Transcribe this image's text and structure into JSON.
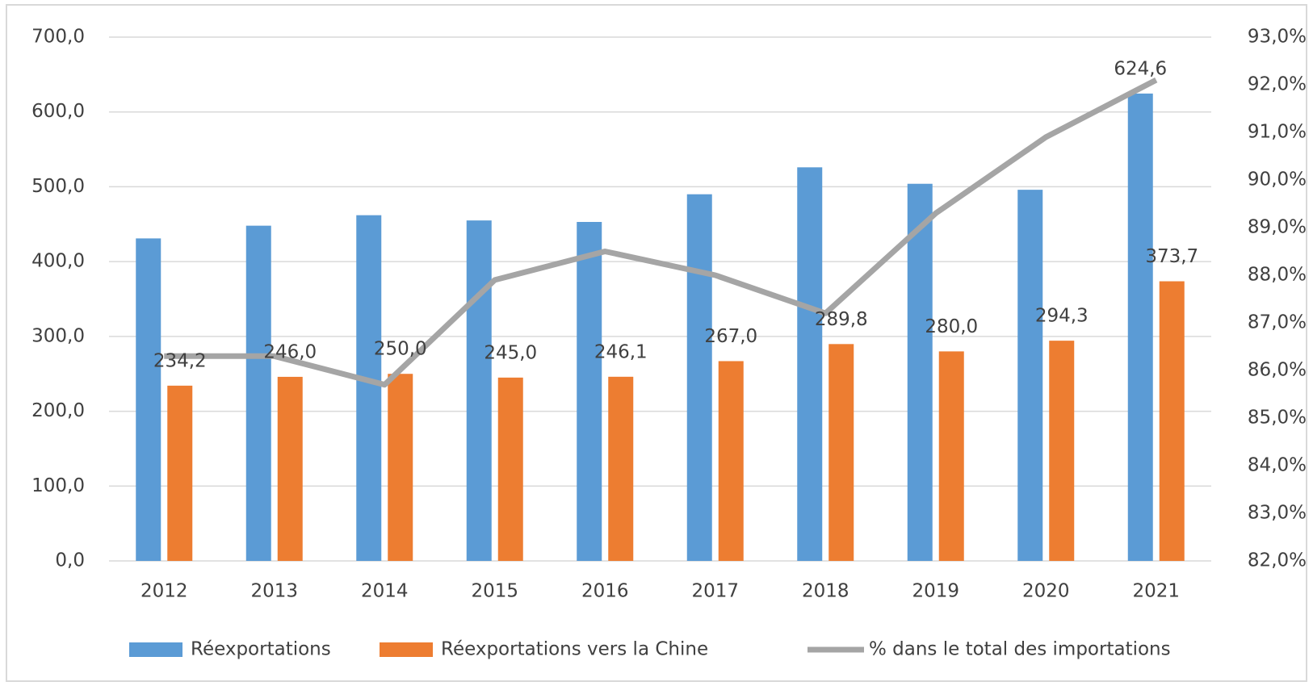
{
  "chart_data": {
    "type": "bar",
    "categories": [
      "2012",
      "2013",
      "2014",
      "2015",
      "2016",
      "2017",
      "2018",
      "2019",
      "2020",
      "2021"
    ],
    "series": [
      {
        "name": "Réexportations",
        "color": "#5b9bd5",
        "type": "bar",
        "values": [
          431,
          448,
          462,
          455,
          453,
          490,
          526,
          504,
          496,
          624.6
        ],
        "value_labels": [
          null,
          null,
          null,
          null,
          null,
          null,
          null,
          null,
          null,
          "624,6"
        ]
      },
      {
        "name": "Réexportations vers la Chine",
        "color": "#ed7d31",
        "type": "bar",
        "values": [
          234.2,
          246.0,
          250.0,
          245.0,
          246.1,
          267.0,
          289.8,
          280.0,
          294.3,
          373.7
        ],
        "value_labels": [
          "234,2",
          "246,0",
          "250,0",
          "245,0",
          "246,1",
          "267,0",
          "289,8",
          "280,0",
          "294,3",
          "373,7"
        ]
      },
      {
        "name": "% dans le total des importations",
        "color": "#a5a5a5",
        "type": "line",
        "axis": "y2",
        "values": [
          86.3,
          86.3,
          85.7,
          87.9,
          88.5,
          88.0,
          87.2,
          89.3,
          90.9,
          92.1
        ]
      }
    ],
    "ylim": [
      0,
      700
    ],
    "yticks": [
      {
        "value": 0,
        "label": "0,0"
      },
      {
        "value": 100,
        "label": "100,0"
      },
      {
        "value": 200,
        "label": "200,0"
      },
      {
        "value": 300,
        "label": "300,0"
      },
      {
        "value": 400,
        "label": "400,0"
      },
      {
        "value": 500,
        "label": "500,0"
      },
      {
        "value": 600,
        "label": "600,0"
      },
      {
        "value": 700,
        "label": "700,0"
      }
    ],
    "y2lim": [
      82,
      93
    ],
    "y2ticks": [
      {
        "value": 82,
        "label": "82,0%"
      },
      {
        "value": 83,
        "label": "83,0%"
      },
      {
        "value": 84,
        "label": "84,0%"
      },
      {
        "value": 85,
        "label": "85,0%"
      },
      {
        "value": 86,
        "label": "86,0%"
      },
      {
        "value": 87,
        "label": "87,0%"
      },
      {
        "value": 88,
        "label": "88,0%"
      },
      {
        "value": 89,
        "label": "89,0%"
      },
      {
        "value": 90,
        "label": "90,0%"
      },
      {
        "value": 91,
        "label": "91,0%"
      },
      {
        "value": 92,
        "label": "92,0%"
      },
      {
        "value": 93,
        "label": "93,0%"
      }
    ],
    "grid": true,
    "legend": "bottom"
  }
}
